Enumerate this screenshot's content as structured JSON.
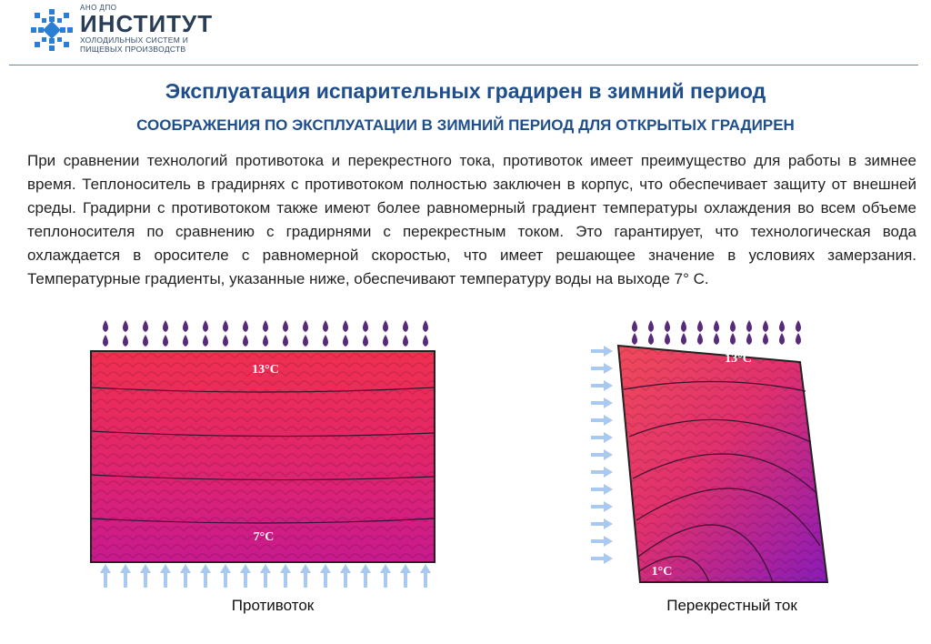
{
  "logo": {
    "small": "АНО ДПО",
    "big": "ИНСТИТУТ",
    "line1": "ХОЛОДИЛЬНЫХ СИСТЕМ И",
    "line2": "ПИЩЕВЫХ ПРОИЗВОДСТВ",
    "icon": "snowflake-icon",
    "color": "#2a7fd4"
  },
  "title": "Эксплуатация испарительных градирен в зимний период",
  "subtitle": "СООБРАЖЕНИЯ ПО ЭКСПЛУАТАЦИИ В ЗИМНИЙ ПЕРИОД ДЛЯ ОТКРЫТЫХ ГРАДИРЕН",
  "body": "При сравнении технологий противотока и перекрестного тока, противоток имеет преимущество для работы в зимнее время. Теплоноситель в градирнях с противотоком полностью заключен в корпус, что обеспечивает защиту от внешней среды. Градирни с противотоком также имеют более равномерный градиент температуры охлаждения во всем объеме теплоносителя по сравнению с градирнями с перекрестным током. Это гарантирует, что технологическая вода охлаждается в оросителе с равномерной скоростью, что имеет решающее значение в условиях замерзания. Температурные градиенты, указанные ниже, обеспечивают температуру воды на выходе 7° С.",
  "left_diagram": {
    "top_temp": "13°C",
    "bottom_temp": "7°C",
    "caption": "Противоток"
  },
  "right_diagram": {
    "top_temp": "13°C",
    "bottom_temp": "1°C",
    "caption": "Перекрестный ток"
  },
  "colors": {
    "drop": "#5a2a7a",
    "air_arrow": "#a9c9f0",
    "heading": "#1f4e8c"
  }
}
